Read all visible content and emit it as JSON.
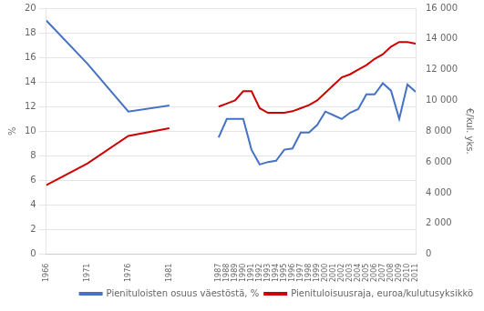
{
  "chart_data": {
    "type": "line",
    "x": [
      1966,
      1971,
      1976,
      1981,
      1987,
      1988,
      1989,
      1990,
      1991,
      1992,
      1993,
      1994,
      1995,
      1996,
      1997,
      1998,
      1999,
      2000,
      2001,
      2002,
      2003,
      2004,
      2005,
      2006,
      2007,
      2008,
      2009,
      2010,
      2011
    ],
    "xlim": [
      1966,
      2011
    ],
    "xticks": [
      1966,
      1971,
      1976,
      1981,
      1987,
      1988,
      1989,
      1990,
      1991,
      1992,
      1993,
      1994,
      1995,
      1996,
      1997,
      1998,
      1999,
      2000,
      2001,
      2002,
      2003,
      2004,
      2005,
      2006,
      2007,
      2008,
      2009,
      2010,
      2011
    ],
    "ylabel": "%",
    "ylim": [
      0,
      20
    ],
    "yticks": [
      0,
      2,
      4,
      6,
      8,
      10,
      12,
      14,
      16,
      18,
      20
    ],
    "y2label": "€/kul. yks.",
    "y2lim": [
      0,
      16000
    ],
    "y2ticks": [
      0,
      {
        "value": 2000,
        "label": "2 000"
      },
      {
        "value": 4000,
        "label": "4 000"
      },
      {
        "value": 6000,
        "label": "6 000"
      },
      {
        "value": 8000,
        "label": "8 000"
      },
      {
        "value": 10000,
        "label": "10 000"
      },
      {
        "value": 12000,
        "label": "12 000"
      },
      {
        "value": 14000,
        "label": "14 000"
      },
      {
        "value": 16000,
        "label": "16 000"
      }
    ],
    "grid": true,
    "legend": "lower right",
    "series": [
      {
        "color": "#4472C4",
        "values": [
          19.0,
          15.5,
          11.6,
          12.1,
          null,
          null,
          null,
          null,
          null,
          null,
          null,
          null,
          null,
          null,
          null,
          null,
          null,
          null,
          null,
          null,
          null,
          null,
          null,
          null,
          null,
          null,
          null,
          null,
          null
        ]
      },
      {
        "name": "Pienituloisten osuus väestöstä, %",
        "color": "#4472C4",
        "values": [
          null,
          null,
          null,
          null,
          9.5,
          11.0,
          11.0,
          11.0,
          8.5,
          7.3,
          7.5,
          7.6,
          8.5,
          8.6,
          9.9,
          9.9,
          10.5,
          11.6,
          11.3,
          11.0,
          11.5,
          11.8,
          13.0,
          13.0,
          13.9,
          13.3,
          11.0,
          13.8,
          13.2
        ]
      },
      {
        "color": "#CC0000",
        "axis": "y2",
        "values": [
          4500,
          5900,
          7700,
          8200,
          null,
          null,
          null,
          null,
          null,
          null,
          null,
          null,
          null,
          null,
          null,
          null,
          null,
          null,
          null,
          null,
          null,
          null,
          null,
          null,
          null,
          null,
          null,
          null,
          null
        ]
      },
      {
        "name": "Pienituloisuusraja, euroa/kulutusyksikkö",
        "color": "#CC0000",
        "axis": "y2",
        "values": [
          null,
          null,
          null,
          null,
          9600,
          9800,
          10000,
          10600,
          10600,
          9500,
          9200,
          9200,
          9200,
          9300,
          9500,
          9700,
          10000,
          10500,
          11000,
          11500,
          11700,
          12000,
          12300,
          12700,
          13000,
          13500,
          13800,
          13800,
          13700
        ]
      }
    ]
  }
}
